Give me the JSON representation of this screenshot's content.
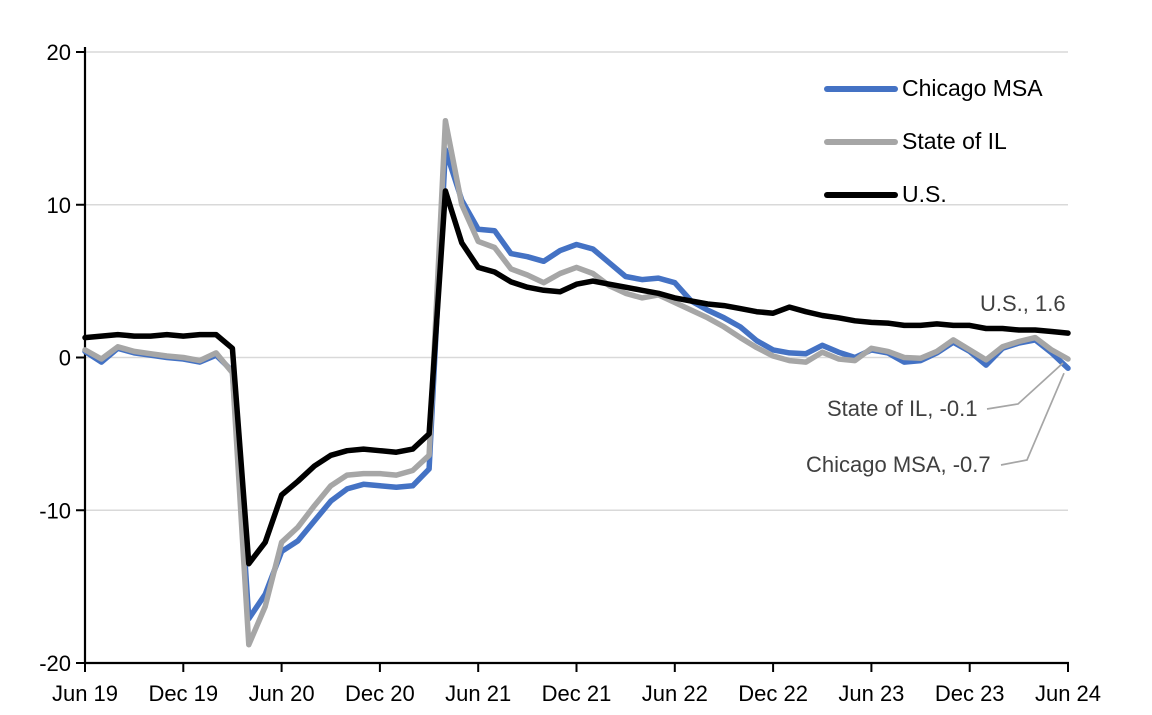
{
  "chart_data": {
    "type": "line",
    "title": "",
    "xlabel": "",
    "ylabel": "",
    "ylim": [
      -20,
      20
    ],
    "y_ticks": [
      20,
      10,
      0,
      -10,
      -20
    ],
    "x_tick_every": 6,
    "x_tick_labels": [
      "Jun 19",
      "Dec 19",
      "Jun 20",
      "Dec 20",
      "Jun 21",
      "Dec 21",
      "Jun 22",
      "Dec 22",
      "Jun 23",
      "Dec 23",
      "Jun 24"
    ],
    "x_labels": [
      "Jun 2019",
      "Jul 2019",
      "Aug 2019",
      "Sep 2019",
      "Oct 2019",
      "Nov 2019",
      "Dec 2019",
      "Jan 2020",
      "Feb 2020",
      "Mar 2020",
      "Apr 2020",
      "May 2020",
      "Jun 2020",
      "Jul 2020",
      "Aug 2020",
      "Sep 2020",
      "Oct 2020",
      "Nov 2020",
      "Dec 2020",
      "Jan 2021",
      "Feb 2021",
      "Mar 2021",
      "Apr 2021",
      "May 2021",
      "Jun 2021",
      "Jul 2021",
      "Aug 2021",
      "Sep 2021",
      "Oct 2021",
      "Nov 2021",
      "Dec 2021",
      "Jan 2022",
      "Feb 2022",
      "Mar 2022",
      "Apr 2022",
      "May 2022",
      "Jun 2022",
      "Jul 2022",
      "Aug 2022",
      "Sep 2022",
      "Oct 2022",
      "Nov 2022",
      "Dec 2022",
      "Jan 2023",
      "Feb 2023",
      "Mar 2023",
      "Apr 2023",
      "May 2023",
      "Jun 2023",
      "Jul 2023",
      "Aug 2023",
      "Sep 2023",
      "Oct 2023",
      "Nov 2023",
      "Dec 2023",
      "Jan 2024",
      "Feb 2024",
      "Mar 2024",
      "Apr 2024",
      "May 2024",
      "Jun 2024"
    ],
    "grid": "horizontal",
    "legend_position": "top-right",
    "series": [
      {
        "name": "Chicago MSA",
        "color": "#4472C4",
        "values": [
          0.4,
          -0.3,
          0.6,
          0.3,
          0.15,
          0.0,
          -0.1,
          -0.3,
          0.15,
          -0.9,
          -17.1,
          -15.5,
          -12.7,
          -12.0,
          -10.7,
          -9.4,
          -8.6,
          -8.3,
          -8.4,
          -8.5,
          -8.4,
          -7.3,
          13.6,
          10.3,
          8.4,
          8.3,
          6.8,
          6.6,
          6.3,
          7.0,
          7.4,
          7.1,
          6.2,
          5.3,
          5.1,
          5.2,
          4.9,
          3.7,
          3.1,
          2.6,
          2.0,
          1.1,
          0.5,
          0.3,
          0.25,
          0.8,
          0.35,
          0.0,
          0.5,
          0.3,
          -0.3,
          -0.2,
          0.3,
          1.0,
          0.4,
          -0.5,
          0.6,
          0.95,
          1.15,
          0.3,
          -0.7
        ]
      },
      {
        "name": "State of IL",
        "color": "#A6A6A6",
        "values": [
          0.5,
          -0.1,
          0.7,
          0.4,
          0.25,
          0.1,
          0.0,
          -0.2,
          0.3,
          -1.0,
          -18.8,
          -16.3,
          -12.1,
          -11.1,
          -9.7,
          -8.4,
          -7.7,
          -7.6,
          -7.6,
          -7.7,
          -7.4,
          -6.4,
          15.5,
          10.0,
          7.6,
          7.2,
          5.8,
          5.4,
          4.9,
          5.5,
          5.9,
          5.5,
          4.7,
          4.2,
          3.9,
          4.1,
          3.6,
          3.1,
          2.6,
          2.0,
          1.3,
          0.65,
          0.1,
          -0.2,
          -0.3,
          0.35,
          -0.1,
          -0.2,
          0.6,
          0.4,
          0.0,
          -0.05,
          0.4,
          1.15,
          0.5,
          -0.15,
          0.7,
          1.05,
          1.3,
          0.5,
          -0.1
        ]
      },
      {
        "name": "U.S.",
        "color": "#000000",
        "values": [
          1.3,
          1.4,
          1.5,
          1.4,
          1.4,
          1.5,
          1.4,
          1.5,
          1.5,
          0.6,
          -13.5,
          -12.1,
          -9.0,
          -8.1,
          -7.1,
          -6.4,
          -6.1,
          -6.0,
          -6.1,
          -6.2,
          -6.0,
          -5.0,
          10.9,
          7.5,
          5.9,
          5.6,
          4.95,
          4.6,
          4.4,
          4.3,
          4.8,
          5.0,
          4.8,
          4.6,
          4.4,
          4.2,
          3.9,
          3.7,
          3.5,
          3.4,
          3.2,
          3.0,
          2.9,
          3.3,
          3.0,
          2.75,
          2.6,
          2.4,
          2.3,
          2.25,
          2.1,
          2.1,
          2.2,
          2.1,
          2.1,
          1.9,
          1.9,
          1.8,
          1.8,
          1.7,
          1.6
        ]
      }
    ],
    "annotations": [
      {
        "label": "U.S., 1.6",
        "series": "U.S.",
        "value": 1.6
      },
      {
        "label": "State of IL, -0.1",
        "series": "State of IL",
        "value": -0.1
      },
      {
        "label": "Chicago MSA, -0.7",
        "series": "Chicago MSA",
        "value": -0.7
      }
    ],
    "colors": {
      "gridline": "#D9D9D9",
      "axis": "#000000",
      "leader_line": "#A6A6A6",
      "annotation_text": "#404040"
    }
  }
}
